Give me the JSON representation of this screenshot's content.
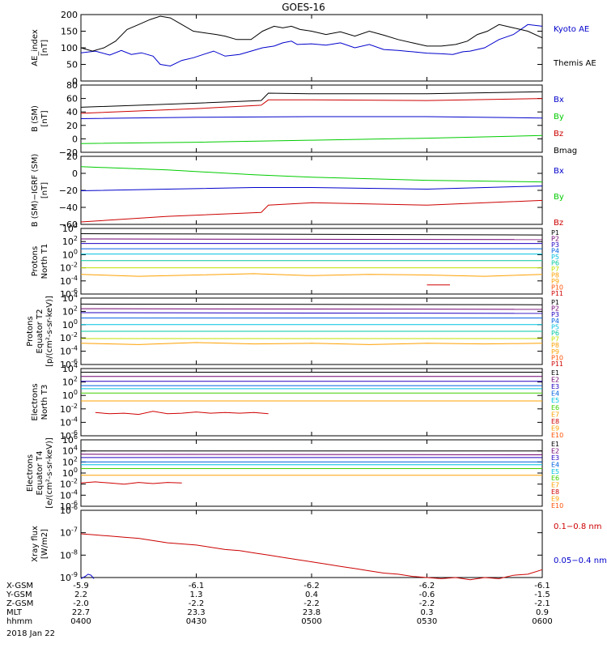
{
  "title": "GOES-16",
  "date_label": "2018 Jan 22",
  "colors": {
    "black": "#000000",
    "blue": "#0000cc",
    "green": "#00cc00",
    "red": "#cc0000",
    "p1": "#000000",
    "p2": "#700070",
    "p3": "#2000c0",
    "p4": "#0060e0",
    "p5": "#00c0e0",
    "p6": "#00c8a0",
    "p7": "#40d000",
    "p8": "#c0e000",
    "p9": "#ffa000",
    "p10": "#ff5000",
    "p11": "#d00000"
  },
  "footer": {
    "rows": [
      {
        "label": "X-GSM",
        "values": [
          "-5.9",
          "-6.1",
          "-6.2",
          "-6.2",
          "-6.1"
        ]
      },
      {
        "label": "Y-GSM",
        "values": [
          "2.2",
          "1.3",
          "0.4",
          "-0.6",
          "-1.5"
        ]
      },
      {
        "label": "Z-GSM",
        "values": [
          "-2.0",
          "-2.2",
          "-2.2",
          "-2.2",
          "-2.1"
        ]
      },
      {
        "label": "MLT",
        "values": [
          "22.7",
          "23.3",
          "23.8",
          "0.3",
          "0.9"
        ]
      },
      {
        "label": "hhmm",
        "values": [
          "0400",
          "0430",
          "0500",
          "0530",
          "0600"
        ]
      }
    ]
  },
  "chart_data": [
    {
      "type": "line",
      "ylabel": "AE_index\n[nT]",
      "ylim": [
        0,
        200
      ],
      "yticks": [
        "0",
        "50",
        "100",
        "150",
        "200"
      ],
      "legend": [
        "Kyoto AE",
        "Themis AE"
      ],
      "series": [
        {
          "name": "Kyoto AE",
          "color": "blue",
          "x": [
            0,
            10,
            20,
            28,
            35,
            42,
            50,
            55,
            62,
            70,
            78,
            85,
            92,
            100,
            110,
            118,
            126,
            134,
            140,
            146,
            150,
            160,
            170,
            180,
            190,
            200,
            210,
            220,
            230,
            240,
            250,
            258,
            265,
            270,
            280,
            290,
            300,
            310,
            320
          ],
          "y": [
            85,
            90,
            78,
            92,
            80,
            85,
            75,
            50,
            45,
            62,
            70,
            80,
            90,
            75,
            80,
            90,
            100,
            105,
            115,
            120,
            110,
            112,
            108,
            115,
            100,
            110,
            95,
            92,
            88,
            84,
            82,
            80,
            88,
            90,
            100,
            125,
            140,
            170,
            165
          ]
        },
        {
          "name": "Themis AE",
          "color": "black",
          "x": [
            0,
            8,
            16,
            24,
            32,
            40,
            48,
            55,
            62,
            70,
            78,
            86,
            94,
            100,
            108,
            118,
            126,
            134,
            140,
            146,
            152,
            160,
            170,
            180,
            190,
            200,
            210,
            220,
            230,
            240,
            250,
            260,
            268,
            275,
            282,
            290,
            300,
            310,
            320
          ],
          "y": [
            100,
            90,
            100,
            120,
            155,
            170,
            185,
            195,
            190,
            170,
            150,
            145,
            140,
            135,
            125,
            125,
            150,
            165,
            160,
            165,
            155,
            150,
            140,
            148,
            135,
            150,
            138,
            125,
            115,
            105,
            105,
            110,
            120,
            140,
            150,
            170,
            160,
            150,
            130
          ]
        }
      ]
    },
    {
      "type": "line",
      "ylabel": "B (SM)\n[nT]",
      "ylim": [
        -20,
        80
      ],
      "yticks": [
        "−20",
        "0",
        "20",
        "40",
        "60",
        "80"
      ],
      "legend": [
        "Bx",
        "By",
        "Bz",
        "Bmag"
      ],
      "series": [
        {
          "name": "Bx",
          "color": "blue",
          "x": [
            0,
            80,
            160,
            240,
            320
          ],
          "y": [
            30,
            32,
            33,
            33,
            31
          ]
        },
        {
          "name": "By",
          "color": "green",
          "x": [
            0,
            80,
            160,
            240,
            320
          ],
          "y": [
            -7,
            -5,
            -2,
            1,
            5
          ]
        },
        {
          "name": "Bz",
          "color": "red",
          "x": [
            0,
            80,
            125,
            130,
            160,
            240,
            320
          ],
          "y": [
            38,
            45,
            50,
            58,
            58,
            57,
            60
          ]
        },
        {
          "name": "Bmag",
          "color": "black",
          "x": [
            0,
            80,
            125,
            130,
            160,
            240,
            320
          ],
          "y": [
            47,
            53,
            57,
            68,
            67,
            67,
            70
          ]
        }
      ]
    },
    {
      "type": "line",
      "ylabel": "B (SM)−IGRF (SM)\n[nT]",
      "ylim": [
        -60,
        25
      ],
      "yticks": [
        "−60",
        "−40",
        "−20",
        "0",
        "20"
      ],
      "legend": [
        "Bx",
        "By",
        "Bz"
      ],
      "series": [
        {
          "name": "By",
          "color": "green",
          "x": [
            0,
            60,
            120,
            160,
            240,
            320
          ],
          "y": [
            12,
            8,
            2,
            -1,
            -5,
            -7
          ]
        },
        {
          "name": "Bx",
          "color": "blue",
          "x": [
            0,
            60,
            120,
            160,
            240,
            320
          ],
          "y": [
            -18,
            -16,
            -14,
            -14,
            -16,
            -12
          ]
        },
        {
          "name": "Bz",
          "color": "red",
          "x": [
            0,
            60,
            125,
            130,
            160,
            240,
            320
          ],
          "y": [
            -57,
            -50,
            -45,
            -36,
            -33,
            -36,
            -30
          ]
        }
      ]
    },
    {
      "type": "line",
      "log": true,
      "ylabel": "Protons\nNorth T1",
      "ylim": [
        -6,
        4
      ],
      "yticks": [
        "10^-6",
        "10^-4",
        "10^-2",
        "10^0",
        "10^2",
        "10^4"
      ],
      "legend": [
        "P1",
        "P2",
        "P3",
        "P4",
        "P5",
        "P6",
        "P7",
        "P8",
        "P9",
        "P10",
        "P11"
      ],
      "series": [
        {
          "name": "P1",
          "color": "p1",
          "x": [
            0,
            320
          ],
          "y": [
            3.2,
            3.0
          ]
        },
        {
          "name": "P2",
          "color": "p2",
          "x": [
            0,
            320
          ],
          "y": [
            2.4,
            2.3
          ]
        },
        {
          "name": "P3",
          "color": "p3",
          "x": [
            0,
            320
          ],
          "y": [
            1.7,
            1.7
          ]
        },
        {
          "name": "P4",
          "color": "p4",
          "x": [
            0,
            320
          ],
          "y": [
            0.9,
            0.9
          ]
        },
        {
          "name": "P5",
          "color": "p5",
          "x": [
            0,
            320
          ],
          "y": [
            0.1,
            0.1
          ]
        },
        {
          "name": "P6",
          "color": "p6",
          "x": [
            0,
            320
          ],
          "y": [
            -0.9,
            -0.9
          ]
        },
        {
          "name": "P7",
          "color": "p8",
          "x": [
            0,
            320
          ],
          "y": [
            -2.0,
            -2.0
          ]
        },
        {
          "name": "P8",
          "color": "p9",
          "x": [
            0,
            40,
            80,
            120,
            160,
            200,
            240,
            280,
            320
          ],
          "y": [
            -3.0,
            -3.3,
            -3.1,
            -2.9,
            -3.2,
            -3.0,
            -3.1,
            -3.3,
            -3.0
          ]
        },
        {
          "name": "P11",
          "color": "p11",
          "x": [
            240,
            256
          ],
          "y": [
            -4.6,
            -4.6
          ]
        }
      ]
    },
    {
      "type": "line",
      "log": true,
      "ylabel": "Protons\nEquator T2\n[p/(cm²-s-sr-keV)]",
      "ylim": [
        -6,
        4
      ],
      "yticks": [
        "10^-6",
        "10^-4",
        "10^-2",
        "10^0",
        "10^2",
        "10^4"
      ],
      "legend": [
        "P1",
        "P2",
        "P3",
        "P4",
        "P5",
        "P6",
        "P7",
        "P8",
        "P9",
        "P10",
        "P11"
      ],
      "series": [
        {
          "name": "P1",
          "color": "p1",
          "x": [
            0,
            320
          ],
          "y": [
            3.1,
            3.0
          ]
        },
        {
          "name": "P2",
          "color": "p2",
          "x": [
            0,
            320
          ],
          "y": [
            2.4,
            2.3
          ]
        },
        {
          "name": "P3",
          "color": "p3",
          "x": [
            0,
            320
          ],
          "y": [
            1.8,
            1.7
          ]
        },
        {
          "name": "P4",
          "color": "p4",
          "x": [
            0,
            320
          ],
          "y": [
            1.0,
            1.0
          ]
        },
        {
          "name": "P5",
          "color": "p5",
          "x": [
            0,
            320
          ],
          "y": [
            0.0,
            0.0
          ]
        },
        {
          "name": "P6",
          "color": "p6",
          "x": [
            0,
            320
          ],
          "y": [
            -1.0,
            -1.0
          ]
        },
        {
          "name": "P7",
          "color": "p8",
          "x": [
            0,
            320
          ],
          "y": [
            -2.1,
            -2.1
          ]
        },
        {
          "name": "P8",
          "color": "p9",
          "x": [
            0,
            40,
            80,
            120,
            160,
            200,
            240,
            280,
            320
          ],
          "y": [
            -2.8,
            -3.0,
            -2.7,
            -2.9,
            -2.8,
            -3.0,
            -2.8,
            -2.9,
            -2.8
          ]
        }
      ]
    },
    {
      "type": "line",
      "log": true,
      "ylabel": "Electrons\nNorth T3",
      "ylim": [
        -6,
        5
      ],
      "yticks": [
        "10^-6",
        "10^-4",
        "10^-2",
        "10^0",
        "10^2",
        "10^4"
      ],
      "legend": [
        "E1",
        "E2",
        "E3",
        "E4",
        "E5",
        "E6",
        "E7",
        "E8",
        "E9",
        "E10"
      ],
      "series": [
        {
          "name": "E1",
          "color": "p1",
          "x": [
            0,
            320
          ],
          "y": [
            4.4,
            4.4
          ]
        },
        {
          "name": "E2",
          "color": "p2",
          "x": [
            0,
            320
          ],
          "y": [
            3.7,
            3.7
          ]
        },
        {
          "name": "E3",
          "color": "p3",
          "x": [
            0,
            320
          ],
          "y": [
            2.9,
            2.9
          ]
        },
        {
          "name": "E4",
          "color": "p4",
          "x": [
            0,
            320
          ],
          "y": [
            2.2,
            2.2
          ]
        },
        {
          "name": "E5",
          "color": "p5",
          "x": [
            0,
            320
          ],
          "y": [
            1.7,
            1.7
          ]
        },
        {
          "name": "E6",
          "color": "p7",
          "x": [
            0,
            320
          ],
          "y": [
            1.0,
            1.0
          ]
        },
        {
          "name": "E7",
          "color": "p9",
          "x": [
            0,
            320
          ],
          "y": [
            -0.3,
            -0.3
          ]
        },
        {
          "name": "E8",
          "color": "p11",
          "x": [
            10,
            20,
            30,
            40,
            50,
            60,
            70,
            80,
            90,
            100,
            110,
            120,
            130
          ],
          "y": [
            -2.2,
            -2.4,
            -2.3,
            -2.5,
            -2.0,
            -2.4,
            -2.3,
            -2.1,
            -2.3,
            -2.2,
            -2.3,
            -2.2,
            -2.4
          ]
        }
      ]
    },
    {
      "type": "line",
      "log": true,
      "ylabel": "Electrons\nEquator T4\n[e/(cm²-s-sr-keV)]",
      "ylim": [
        -6,
        6
      ],
      "yticks": [
        "10^-6",
        "10^-4",
        "10^-2",
        "10^0",
        "10^2",
        "10^4",
        "10^6"
      ],
      "legend": [
        "E1",
        "E2",
        "E3",
        "E4",
        "E5",
        "E6",
        "E7",
        "E8",
        "E9",
        "E10"
      ],
      "series": [
        {
          "name": "E1",
          "color": "p1",
          "x": [
            0,
            320
          ],
          "y": [
            4.0,
            4.0
          ]
        },
        {
          "name": "E2",
          "color": "p2",
          "x": [
            0,
            320
          ],
          "y": [
            3.4,
            3.3
          ]
        },
        {
          "name": "E3",
          "color": "p3",
          "x": [
            0,
            320
          ],
          "y": [
            2.8,
            2.8
          ]
        },
        {
          "name": "E4",
          "color": "p4",
          "x": [
            0,
            320
          ],
          "y": [
            2.0,
            2.0
          ]
        },
        {
          "name": "E5",
          "color": "p5",
          "x": [
            0,
            320
          ],
          "y": [
            1.5,
            1.5
          ]
        },
        {
          "name": "E6",
          "color": "p7",
          "x": [
            0,
            320
          ],
          "y": [
            0.8,
            0.8
          ]
        },
        {
          "name": "E7",
          "color": "p9",
          "x": [
            0,
            320
          ],
          "y": [
            -0.4,
            -0.4
          ]
        },
        {
          "name": "E8",
          "color": "p11",
          "x": [
            0,
            10,
            20,
            30,
            40,
            50,
            60,
            70
          ],
          "y": [
            -1.8,
            -1.6,
            -1.8,
            -2.0,
            -1.7,
            -1.9,
            -1.7,
            -1.8
          ]
        }
      ]
    },
    {
      "type": "line",
      "log": true,
      "ylabel": "Xray flux\n[W/m2]",
      "ylim": [
        -9,
        -6
      ],
      "yticks": [
        "10^-9",
        "10^-8",
        "10^-7",
        "10^-6"
      ],
      "legend": [
        "0.1−0.8 nm",
        "0.05−0.4 nm"
      ],
      "series": [
        {
          "name": "0.1−0.8 nm",
          "color": "red",
          "x": [
            0,
            10,
            20,
            30,
            40,
            50,
            60,
            70,
            80,
            90,
            100,
            110,
            120,
            130,
            140,
            150,
            160,
            170,
            180,
            190,
            200,
            210,
            220,
            230,
            240,
            250,
            260,
            270,
            280,
            290,
            300,
            310,
            320
          ],
          "y": [
            -7.05,
            -7.1,
            -7.15,
            -7.2,
            -7.25,
            -7.35,
            -7.45,
            -7.5,
            -7.55,
            -7.65,
            -7.75,
            -7.8,
            -7.9,
            -8.0,
            -8.1,
            -8.2,
            -8.3,
            -8.4,
            -8.5,
            -8.6,
            -8.7,
            -8.8,
            -8.85,
            -8.95,
            -9.0,
            -9.05,
            -9.0,
            -9.1,
            -9.0,
            -9.05,
            -8.9,
            -8.85,
            -8.65
          ]
        },
        {
          "name": "0.05−0.4 nm",
          "color": "blue",
          "x": [
            0,
            3,
            5,
            7,
            9
          ],
          "y": [
            -9.05,
            -8.95,
            -8.85,
            -8.9,
            -9.05
          ]
        }
      ]
    }
  ]
}
